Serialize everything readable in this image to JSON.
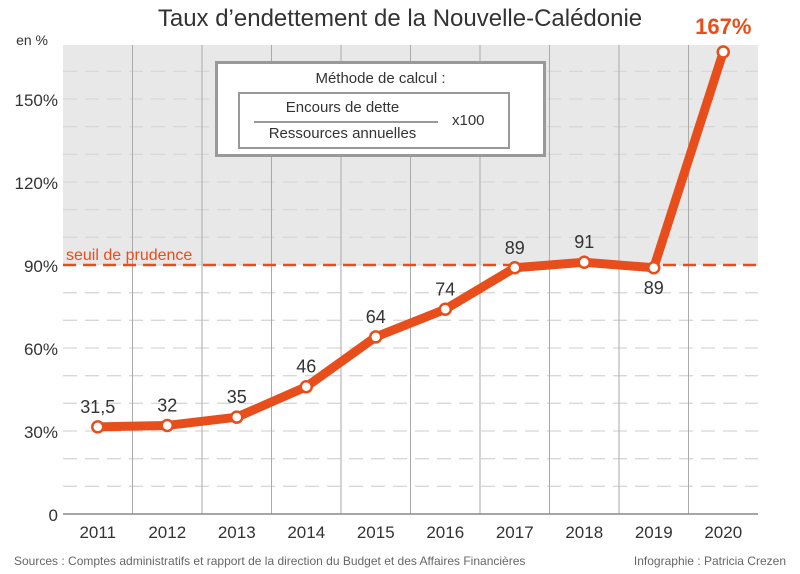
{
  "chart_data": {
    "type": "line",
    "title": "Taux d’endettement de la Nouvelle-Calédonie",
    "ylabel": "en %",
    "categories": [
      "2011",
      "2012",
      "2013",
      "2014",
      "2015",
      "2016",
      "2017",
      "2018",
      "2019",
      "2020"
    ],
    "values": [
      31.5,
      32,
      35,
      46,
      64,
      74,
      89,
      91,
      89,
      167
    ],
    "data_labels": [
      "31,5",
      "32",
      "35",
      "46",
      "64",
      "74",
      "89",
      "91",
      "89",
      "167%"
    ],
    "ylim": [
      0,
      170
    ],
    "yticks": [
      {
        "v": 0,
        "label": "0"
      },
      {
        "v": 30,
        "label": "30%"
      },
      {
        "v": 60,
        "label": "60%"
      },
      {
        "v": 90,
        "label": "90%"
      },
      {
        "v": 120,
        "label": "120%"
      },
      {
        "v": 150,
        "label": "150%"
      }
    ],
    "threshold": {
      "value": 90,
      "label": "seuil de prudence"
    },
    "grid": true,
    "line_color": "#e84e1b",
    "shade_color": "#e8e8e9"
  },
  "formula": {
    "title": "Méthode de calcul :",
    "numerator": "Encours de dette",
    "denominator": "Ressources annuelles",
    "multiplier": "x100"
  },
  "footer": {
    "sources": "Sources : Comptes administratifs et rapport de la direction du Budget et des Affaires Financières",
    "credit": "Infographie : Patricia Crezen"
  }
}
